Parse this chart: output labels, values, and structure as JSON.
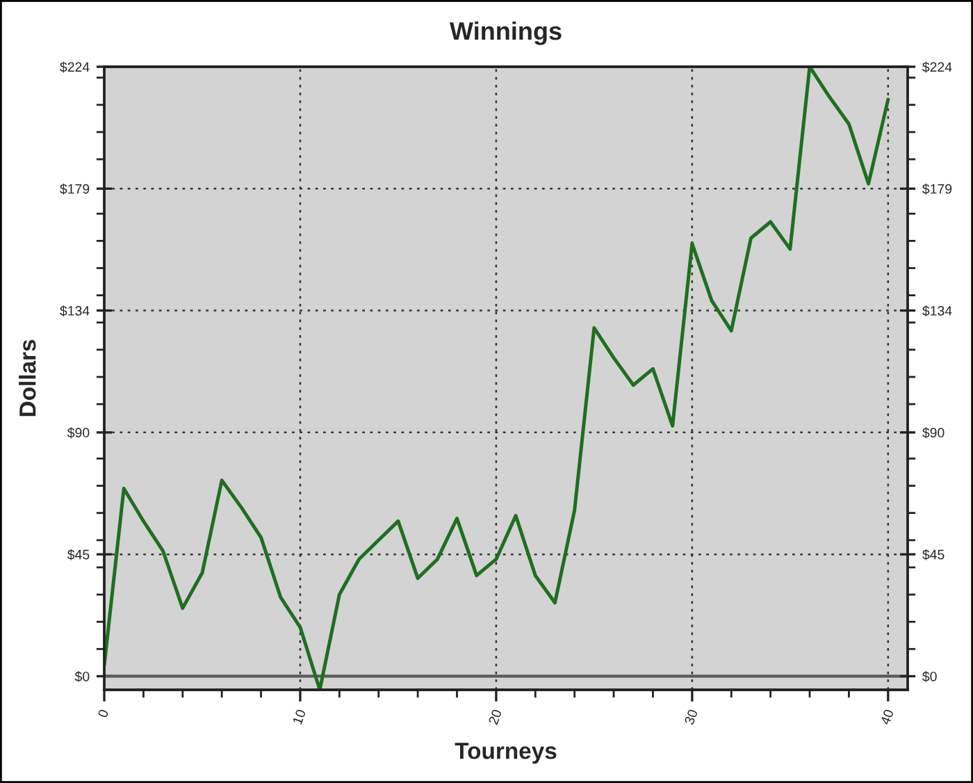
{
  "chart_data": {
    "type": "line",
    "title": "Winnings",
    "xlabel": "Tourneys",
    "ylabel": "Dollars",
    "x": [
      0,
      1,
      2,
      3,
      4,
      5,
      6,
      7,
      8,
      9,
      10,
      11,
      12,
      13,
      14,
      15,
      16,
      17,
      18,
      19,
      20,
      21,
      22,
      23,
      24,
      25,
      26,
      27,
      28,
      29,
      30,
      31,
      32,
      33,
      34,
      35,
      36,
      37,
      38,
      39,
      40
    ],
    "series": [
      {
        "color": "#1f6f1f",
        "values": [
          4,
          69,
          57,
          46,
          25,
          38,
          72,
          62,
          51,
          29,
          18,
          -5,
          30,
          43,
          50,
          57,
          36,
          43,
          58,
          37,
          43,
          59,
          37,
          27,
          61,
          128,
          117,
          107,
          113,
          92,
          159,
          138,
          127,
          161,
          167,
          157,
          224,
          213,
          203,
          181,
          212
        ]
      }
    ],
    "xlim": [
      0,
      41
    ],
    "xticks": [
      0,
      {
        "value": 2,
        "label": null
      },
      {
        "value": 4,
        "label": null
      },
      {
        "value": 6,
        "label": null
      },
      {
        "value": 8,
        "label": null
      },
      10,
      {
        "value": 12,
        "label": null
      },
      {
        "value": 14,
        "label": null
      },
      {
        "value": 16,
        "label": null
      },
      {
        "value": 18,
        "label": null
      },
      20,
      {
        "value": 22,
        "label": null
      },
      {
        "value": 24,
        "label": null
      },
      {
        "value": 26,
        "label": null
      },
      {
        "value": 28,
        "label": null
      },
      30,
      {
        "value": 32,
        "label": null
      },
      {
        "value": 34,
        "label": null
      },
      {
        "value": 36,
        "label": null
      },
      {
        "value": 38,
        "label": null
      },
      40
    ],
    "ylim": [
      -5,
      224
    ],
    "yticks": [
      {
        "value": 0,
        "label": "$0"
      },
      {
        "value": 44.8,
        "label": "$45"
      },
      {
        "value": 89.6,
        "label": "$90"
      },
      {
        "value": 134.4,
        "label": "$134"
      },
      {
        "value": 179.2,
        "label": "$179"
      },
      {
        "value": 224,
        "label": "$224"
      },
      {
        "value": 10,
        "label": null
      },
      {
        "value": 20,
        "label": null
      },
      {
        "value": 30,
        "label": null
      },
      {
        "value": 40,
        "label": null
      },
      {
        "value": 50,
        "label": null
      },
      {
        "value": 60,
        "label": null
      },
      {
        "value": 70,
        "label": null
      },
      {
        "value": 80,
        "label": null
      },
      {
        "value": 100,
        "label": null
      },
      {
        "value": 110,
        "label": null
      },
      {
        "value": 120,
        "label": null
      },
      {
        "value": 130,
        "label": null
      },
      {
        "value": 140,
        "label": null
      },
      {
        "value": 150,
        "label": null
      },
      {
        "value": 160,
        "label": null
      },
      {
        "value": 170,
        "label": null
      },
      {
        "value": 190,
        "label": null
      },
      {
        "value": 200,
        "label": null
      },
      {
        "value": 210,
        "label": null
      },
      {
        "value": 220,
        "label": null
      }
    ],
    "y2lim": [
      -5,
      224
    ],
    "y2ticks": [
      {
        "value": 0,
        "label": "$0"
      },
      {
        "value": 44.8,
        "label": "$45"
      },
      {
        "value": 89.6,
        "label": "$90"
      },
      {
        "value": 134.4,
        "label": "$134"
      },
      {
        "value": 179.2,
        "label": "$179"
      },
      {
        "value": 224,
        "label": "$224"
      },
      {
        "value": 10,
        "label": null
      },
      {
        "value": 20,
        "label": null
      },
      {
        "value": 30,
        "label": null
      },
      {
        "value": 40,
        "label": null
      },
      {
        "value": 50,
        "label": null
      },
      {
        "value": 60,
        "label": null
      },
      {
        "value": 70,
        "label": null
      },
      {
        "value": 80,
        "label": null
      },
      {
        "value": 100,
        "label": null
      },
      {
        "value": 110,
        "label": null
      },
      {
        "value": 120,
        "label": null
      },
      {
        "value": 130,
        "label": null
      },
      {
        "value": 140,
        "label": null
      },
      {
        "value": 150,
        "label": null
      },
      {
        "value": 160,
        "label": null
      },
      {
        "value": 170,
        "label": null
      },
      {
        "value": 190,
        "label": null
      },
      {
        "value": 200,
        "label": null
      },
      {
        "value": 210,
        "label": null
      },
      {
        "value": 220,
        "label": null
      }
    ],
    "grid": true,
    "ref_lines": [
      {
        "axis": "y",
        "value": 0,
        "color": "#5a5a5a"
      }
    ]
  }
}
